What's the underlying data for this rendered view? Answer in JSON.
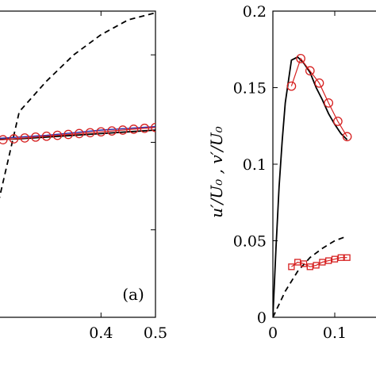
{
  "chart_data": [
    {
      "type": "line",
      "panel_label": "(a)",
      "xlim": [
        0.2,
        0.5
      ],
      "ylim": [
        0,
        0.35
      ],
      "x_ticks": [
        "0.4",
        "0.5"
      ],
      "x_tick_values": [
        0.4,
        0.5
      ],
      "y_ticks": [],
      "ylabel": "",
      "series": [
        {
          "style": "dashed",
          "color": "#000000",
          "x": [
            0.2,
            0.25,
            0.3,
            0.35,
            0.4,
            0.45,
            0.5
          ],
          "y": [
            0.1,
            0.235,
            0.27,
            0.3,
            0.323,
            0.34,
            0.348
          ]
        },
        {
          "style": "solid",
          "color": "#000000",
          "x": [
            0.2,
            0.25,
            0.3,
            0.35,
            0.4,
            0.45,
            0.5
          ],
          "y": [
            0.203,
            0.204,
            0.206,
            0.208,
            0.21,
            0.212,
            0.214
          ]
        },
        {
          "style": "solid",
          "color": "#2a2aa8",
          "x": [
            0.2,
            0.25,
            0.3,
            0.35,
            0.4,
            0.45,
            0.5
          ],
          "y": [
            0.204,
            0.206,
            0.208,
            0.211,
            0.214,
            0.216,
            0.218
          ]
        },
        {
          "style": "circle-markers",
          "color": "#d62020",
          "x": [
            0.2,
            0.22,
            0.24,
            0.26,
            0.28,
            0.3,
            0.32,
            0.34,
            0.36,
            0.38,
            0.4,
            0.42,
            0.44,
            0.46,
            0.48,
            0.5
          ],
          "y": [
            0.203,
            0.203,
            0.204,
            0.205,
            0.206,
            0.207,
            0.208,
            0.209,
            0.21,
            0.211,
            0.212,
            0.213,
            0.214,
            0.215,
            0.216,
            0.217
          ]
        }
      ]
    },
    {
      "type": "line",
      "ylabel": "u′/U₀ ,  v′/U₀",
      "xlim": [
        0,
        0.2
      ],
      "ylim": [
        0,
        0.2
      ],
      "x_ticks": [
        "0",
        "0.1"
      ],
      "x_tick_values": [
        0,
        0.1
      ],
      "y_ticks": [
        "0",
        "0.05",
        "0.1",
        "0.15",
        "0.2"
      ],
      "y_tick_values": [
        0,
        0.05,
        0.1,
        0.15,
        0.2
      ],
      "series": [
        {
          "style": "solid",
          "color": "#000000",
          "x": [
            0.0,
            0.005,
            0.01,
            0.015,
            0.02,
            0.03,
            0.04,
            0.05,
            0.06,
            0.07,
            0.08,
            0.09,
            0.1,
            0.11,
            0.12
          ],
          "y": [
            0.0,
            0.045,
            0.085,
            0.115,
            0.14,
            0.168,
            0.17,
            0.166,
            0.16,
            0.15,
            0.142,
            0.133,
            0.126,
            0.12,
            0.116
          ]
        },
        {
          "style": "dashed",
          "color": "#000000",
          "x": [
            0.0,
            0.02,
            0.04,
            0.06,
            0.08,
            0.1,
            0.12
          ],
          "y": [
            0.0,
            0.017,
            0.03,
            0.039,
            0.045,
            0.05,
            0.053
          ]
        },
        {
          "style": "circle-markers",
          "color": "#d62020",
          "x": [
            0.03,
            0.045,
            0.06,
            0.075,
            0.09,
            0.105,
            0.12
          ],
          "y": [
            0.151,
            0.169,
            0.161,
            0.153,
            0.14,
            0.128,
            0.118
          ]
        },
        {
          "style": "square-markers",
          "color": "#d62020",
          "x": [
            0.03,
            0.04,
            0.05,
            0.06,
            0.07,
            0.08,
            0.09,
            0.1,
            0.11,
            0.12
          ],
          "y": [
            0.033,
            0.036,
            0.035,
            0.033,
            0.034,
            0.036,
            0.037,
            0.038,
            0.039,
            0.039
          ]
        }
      ]
    }
  ]
}
